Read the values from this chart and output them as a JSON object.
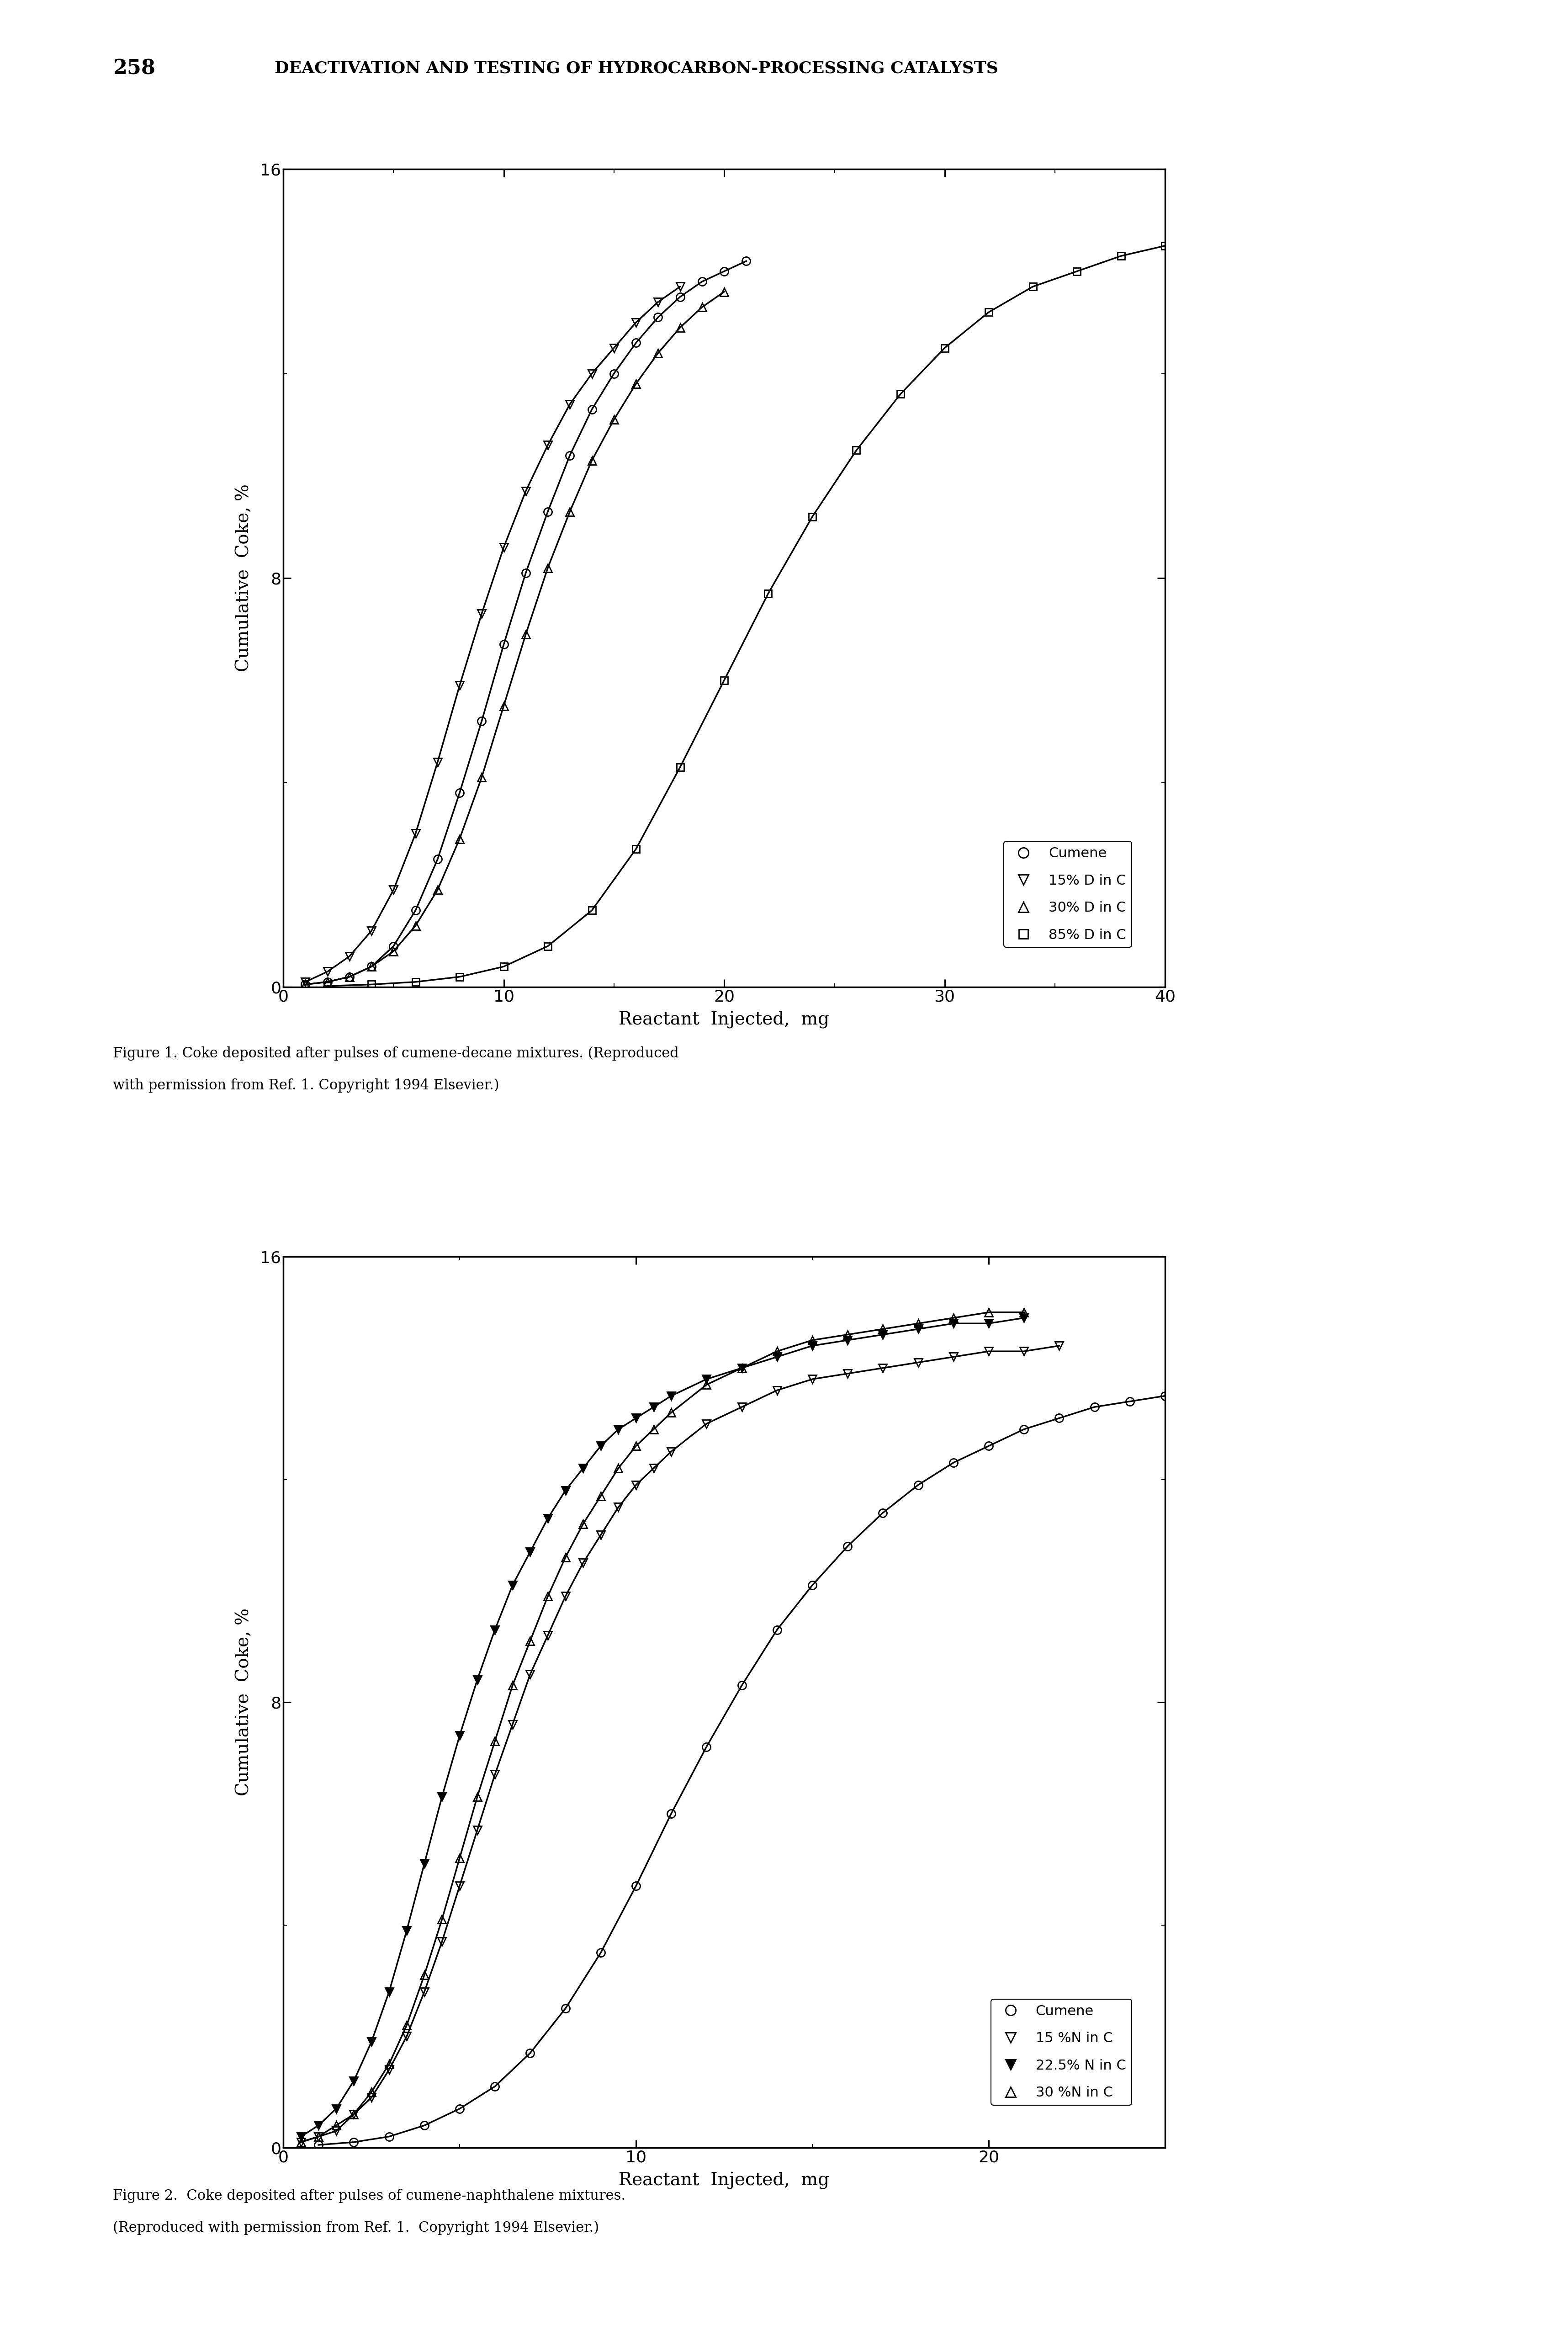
{
  "page_header_num": "258",
  "page_header_text": "DEACTIVATION AND TESTING OF HYDROCARBON-PROCESSING CATALYSTS",
  "fig1_caption_line1": "Figure 1. Coke deposited after pulses of cumene-decane mixtures. (Reproduced",
  "fig1_caption_line2": "with permission from Ref. 1. Copyright 1994 Elsevier.)",
  "fig2_caption_line1": "Figure 2.  Coke deposited after pulses of cumene-naphthalene mixtures.",
  "fig2_caption_line2": "(Reproduced with permission from Ref. 1.  Copyright 1994 Elsevier.)",
  "fig1_xlabel": "Reactant  Injected,  mg",
  "fig1_ylabel": "Cumulative  Coke, %",
  "fig1_xlim": [
    0,
    40
  ],
  "fig1_ylim": [
    0,
    16
  ],
  "fig1_xticks": [
    0,
    10,
    20,
    30,
    40
  ],
  "fig1_yticks": [
    0,
    8,
    16
  ],
  "fig2_xlabel": "Reactant  Injected,  mg",
  "fig2_ylabel": "Cumulative  Coke, %",
  "fig2_xlim": [
    0,
    25
  ],
  "fig2_ylim": [
    0,
    16
  ],
  "fig2_xticks": [
    0,
    10,
    20
  ],
  "fig2_yticks": [
    0,
    8,
    16
  ],
  "fig1_cumene_x": [
    1,
    2,
    3,
    4,
    5,
    6,
    7,
    8,
    9,
    10,
    11,
    12,
    13,
    14,
    15,
    16,
    17,
    18,
    19,
    20,
    21
  ],
  "fig1_cumene_y": [
    0.05,
    0.1,
    0.2,
    0.4,
    0.8,
    1.5,
    2.5,
    3.8,
    5.2,
    6.7,
    8.1,
    9.3,
    10.4,
    11.3,
    12.0,
    12.6,
    13.1,
    13.5,
    13.8,
    14.0,
    14.2
  ],
  "fig1_d15_x": [
    1,
    2,
    3,
    4,
    5,
    6,
    7,
    8,
    9,
    10,
    11,
    12,
    13,
    14,
    15,
    16,
    17,
    18
  ],
  "fig1_d15_y": [
    0.1,
    0.3,
    0.6,
    1.1,
    1.9,
    3.0,
    4.4,
    5.9,
    7.3,
    8.6,
    9.7,
    10.6,
    11.4,
    12.0,
    12.5,
    13.0,
    13.4,
    13.7
  ],
  "fig1_d30_x": [
    1,
    2,
    3,
    4,
    5,
    6,
    7,
    8,
    9,
    10,
    11,
    12,
    13,
    14,
    15,
    16,
    17,
    18,
    19,
    20
  ],
  "fig1_d30_y": [
    0.05,
    0.1,
    0.2,
    0.4,
    0.7,
    1.2,
    1.9,
    2.9,
    4.1,
    5.5,
    6.9,
    8.2,
    9.3,
    10.3,
    11.1,
    11.8,
    12.4,
    12.9,
    13.3,
    13.6
  ],
  "fig1_d85_x": [
    2,
    4,
    6,
    8,
    10,
    12,
    14,
    16,
    18,
    20,
    22,
    24,
    26,
    28,
    30,
    32,
    34,
    36,
    38,
    40
  ],
  "fig1_d85_y": [
    0.02,
    0.05,
    0.1,
    0.2,
    0.4,
    0.8,
    1.5,
    2.7,
    4.3,
    6.0,
    7.7,
    9.2,
    10.5,
    11.6,
    12.5,
    13.2,
    13.7,
    14.0,
    14.3,
    14.5
  ],
  "fig2_cumene_x": [
    1,
    2,
    3,
    4,
    5,
    6,
    7,
    8,
    9,
    10,
    11,
    12,
    13,
    14,
    15,
    16,
    17,
    18,
    19,
    20,
    21,
    22,
    23,
    24,
    25
  ],
  "fig2_cumene_y": [
    0.05,
    0.1,
    0.2,
    0.4,
    0.7,
    1.1,
    1.7,
    2.5,
    3.5,
    4.7,
    6.0,
    7.2,
    8.3,
    9.3,
    10.1,
    10.8,
    11.4,
    11.9,
    12.3,
    12.6,
    12.9,
    13.1,
    13.3,
    13.4,
    13.5
  ],
  "fig2_n15_x": [
    0.5,
    1,
    1.5,
    2,
    2.5,
    3,
    3.5,
    4,
    4.5,
    5,
    5.5,
    6,
    6.5,
    7,
    7.5,
    8,
    8.5,
    9,
    9.5,
    10,
    10.5,
    11,
    12,
    13,
    14,
    15,
    16,
    17,
    18,
    19,
    20,
    21,
    22
  ],
  "fig2_n15_y": [
    0.1,
    0.2,
    0.3,
    0.6,
    0.9,
    1.4,
    2.0,
    2.8,
    3.7,
    4.7,
    5.7,
    6.7,
    7.6,
    8.5,
    9.2,
    9.9,
    10.5,
    11.0,
    11.5,
    11.9,
    12.2,
    12.5,
    13.0,
    13.3,
    13.6,
    13.8,
    13.9,
    14.0,
    14.1,
    14.2,
    14.3,
    14.3,
    14.4
  ],
  "fig2_n22_x": [
    0.5,
    1,
    1.5,
    2,
    2.5,
    3,
    3.5,
    4,
    4.5,
    5,
    5.5,
    6,
    6.5,
    7,
    7.5,
    8,
    8.5,
    9,
    9.5,
    10,
    10.5,
    11,
    12,
    13,
    14,
    15,
    16,
    17,
    18,
    19,
    20,
    21
  ],
  "fig2_n22_y": [
    0.2,
    0.4,
    0.7,
    1.2,
    1.9,
    2.8,
    3.9,
    5.1,
    6.3,
    7.4,
    8.4,
    9.3,
    10.1,
    10.7,
    11.3,
    11.8,
    12.2,
    12.6,
    12.9,
    13.1,
    13.3,
    13.5,
    13.8,
    14.0,
    14.2,
    14.4,
    14.5,
    14.6,
    14.7,
    14.8,
    14.8,
    14.9
  ],
  "fig2_n30_x": [
    0.5,
    1,
    1.5,
    2,
    2.5,
    3,
    3.5,
    4,
    4.5,
    5,
    5.5,
    6,
    6.5,
    7,
    7.5,
    8,
    8.5,
    9,
    9.5,
    10,
    10.5,
    11,
    12,
    13,
    14,
    15,
    16,
    17,
    18,
    19,
    20,
    21
  ],
  "fig2_n30_y": [
    0.1,
    0.2,
    0.4,
    0.6,
    1.0,
    1.5,
    2.2,
    3.1,
    4.1,
    5.2,
    6.3,
    7.3,
    8.3,
    9.1,
    9.9,
    10.6,
    11.2,
    11.7,
    12.2,
    12.6,
    12.9,
    13.2,
    13.7,
    14.0,
    14.3,
    14.5,
    14.6,
    14.7,
    14.8,
    14.9,
    15.0,
    15.0
  ]
}
